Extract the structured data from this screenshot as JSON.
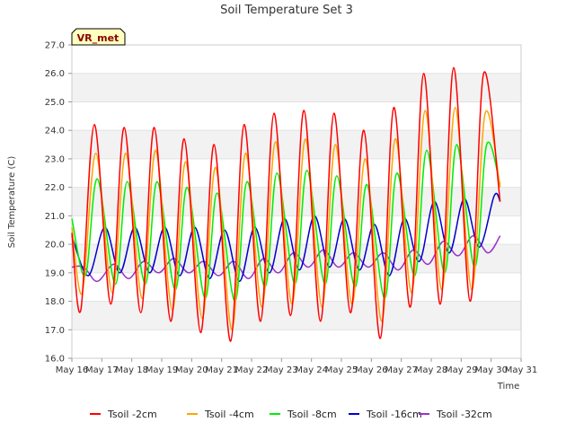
{
  "chart_data": {
    "type": "line",
    "title": "Soil Temperature Set 3",
    "xlabel": "Time",
    "ylabel": "Soil Temperature (C)",
    "ylim": [
      16.0,
      27.0
    ],
    "xlim": [
      "May 16",
      "May 31"
    ],
    "y_ticks": [
      "16.0",
      "17.0",
      "18.0",
      "19.0",
      "20.0",
      "21.0",
      "22.0",
      "23.0",
      "24.0",
      "25.0",
      "26.0",
      "27.0"
    ],
    "x_ticks": [
      "May 16",
      "May 17",
      "May 18",
      "May 19",
      "May 20",
      "May 21",
      "May 22",
      "May 23",
      "May 24",
      "May 25",
      "May 26",
      "May 27",
      "May 28",
      "May 29",
      "May 30",
      "May 31"
    ],
    "grid": "horizontal bands",
    "legend_position": "bottom",
    "badge": "VR_met",
    "series": [
      {
        "name": "Tsoil -2cm",
        "color": "#ff0000",
        "points": [
          [
            0.0,
            20.4
          ],
          [
            0.3,
            17.7
          ],
          [
            0.75,
            24.2
          ],
          [
            1.3,
            17.9
          ],
          [
            1.75,
            24.1
          ],
          [
            2.3,
            17.6
          ],
          [
            2.75,
            24.1
          ],
          [
            3.3,
            17.3
          ],
          [
            3.75,
            23.7
          ],
          [
            4.3,
            16.9
          ],
          [
            4.75,
            23.5
          ],
          [
            5.3,
            16.6
          ],
          [
            5.75,
            24.2
          ],
          [
            6.3,
            17.3
          ],
          [
            6.75,
            24.6
          ],
          [
            7.3,
            17.5
          ],
          [
            7.75,
            24.7
          ],
          [
            8.3,
            17.3
          ],
          [
            8.75,
            24.6
          ],
          [
            9.3,
            17.6
          ],
          [
            9.75,
            24.0
          ],
          [
            10.3,
            16.7
          ],
          [
            10.75,
            24.8
          ],
          [
            11.3,
            17.8
          ],
          [
            11.75,
            26.0
          ],
          [
            12.3,
            17.9
          ],
          [
            12.75,
            26.2
          ],
          [
            13.3,
            18.0
          ],
          [
            13.75,
            26.0
          ],
          [
            14.3,
            21.5
          ]
        ]
      },
      {
        "name": "Tsoil -4cm",
        "color": "#ffa500",
        "points": [
          [
            0.0,
            20.6
          ],
          [
            0.35,
            18.3
          ],
          [
            0.8,
            23.2
          ],
          [
            1.35,
            18.3
          ],
          [
            1.8,
            23.2
          ],
          [
            2.35,
            18.1
          ],
          [
            2.8,
            23.3
          ],
          [
            3.35,
            17.7
          ],
          [
            3.8,
            22.9
          ],
          [
            4.35,
            17.4
          ],
          [
            4.8,
            22.7
          ],
          [
            5.35,
            17.0
          ],
          [
            5.8,
            23.2
          ],
          [
            6.35,
            17.8
          ],
          [
            6.8,
            23.6
          ],
          [
            7.35,
            17.9
          ],
          [
            7.8,
            23.7
          ],
          [
            8.35,
            17.8
          ],
          [
            8.8,
            23.5
          ],
          [
            9.35,
            17.9
          ],
          [
            9.8,
            23.0
          ],
          [
            10.35,
            17.3
          ],
          [
            10.8,
            23.7
          ],
          [
            11.35,
            18.3
          ],
          [
            11.8,
            24.7
          ],
          [
            12.35,
            18.4
          ],
          [
            12.8,
            24.8
          ],
          [
            13.35,
            18.4
          ],
          [
            13.8,
            24.6
          ],
          [
            14.3,
            22.0
          ]
        ]
      },
      {
        "name": "Tsoil -8cm",
        "color": "#00ee00",
        "points": [
          [
            0.0,
            20.9
          ],
          [
            0.45,
            18.9
          ],
          [
            0.85,
            22.3
          ],
          [
            1.45,
            18.6
          ],
          [
            1.85,
            22.2
          ],
          [
            2.45,
            18.6
          ],
          [
            2.85,
            22.2
          ],
          [
            3.45,
            18.4
          ],
          [
            3.85,
            22.0
          ],
          [
            4.45,
            18.1
          ],
          [
            4.85,
            21.8
          ],
          [
            5.45,
            18.0
          ],
          [
            5.85,
            22.2
          ],
          [
            6.45,
            18.5
          ],
          [
            6.85,
            22.5
          ],
          [
            7.45,
            18.6
          ],
          [
            7.85,
            22.6
          ],
          [
            8.45,
            18.6
          ],
          [
            8.85,
            22.4
          ],
          [
            9.45,
            18.5
          ],
          [
            9.85,
            22.1
          ],
          [
            10.45,
            18.1
          ],
          [
            10.85,
            22.5
          ],
          [
            11.45,
            18.9
          ],
          [
            11.85,
            23.3
          ],
          [
            12.45,
            19.0
          ],
          [
            12.85,
            23.5
          ],
          [
            13.45,
            19.2
          ],
          [
            13.85,
            23.5
          ],
          [
            14.3,
            22.1
          ]
        ]
      },
      {
        "name": "Tsoil -16cm",
        "color": "#0000cc",
        "points": [
          [
            0.0,
            20.3
          ],
          [
            0.55,
            18.9
          ],
          [
            1.1,
            20.6
          ],
          [
            1.6,
            19.0
          ],
          [
            2.1,
            20.6
          ],
          [
            2.6,
            19.0
          ],
          [
            3.1,
            20.6
          ],
          [
            3.6,
            18.9
          ],
          [
            4.1,
            20.6
          ],
          [
            4.6,
            18.8
          ],
          [
            5.1,
            20.5
          ],
          [
            5.6,
            18.7
          ],
          [
            6.1,
            20.6
          ],
          [
            6.6,
            19.0
          ],
          [
            7.1,
            20.9
          ],
          [
            7.6,
            19.1
          ],
          [
            8.1,
            21.0
          ],
          [
            8.6,
            19.2
          ],
          [
            9.1,
            20.9
          ],
          [
            9.6,
            19.1
          ],
          [
            10.1,
            20.7
          ],
          [
            10.6,
            18.9
          ],
          [
            11.1,
            20.9
          ],
          [
            11.6,
            19.4
          ],
          [
            12.1,
            21.5
          ],
          [
            12.6,
            19.7
          ],
          [
            13.1,
            21.6
          ],
          [
            13.6,
            19.9
          ],
          [
            14.1,
            21.7
          ],
          [
            14.3,
            21.5
          ]
        ]
      },
      {
        "name": "Tsoil -32cm",
        "color": "#9932cc",
        "points": [
          [
            0.0,
            19.2
          ],
          [
            0.4,
            19.2
          ],
          [
            0.85,
            18.7
          ],
          [
            1.4,
            19.3
          ],
          [
            1.9,
            18.8
          ],
          [
            2.4,
            19.4
          ],
          [
            2.9,
            19.0
          ],
          [
            3.4,
            19.5
          ],
          [
            3.9,
            19.0
          ],
          [
            4.4,
            19.4
          ],
          [
            4.9,
            18.9
          ],
          [
            5.4,
            19.4
          ],
          [
            5.9,
            18.8
          ],
          [
            6.4,
            19.5
          ],
          [
            6.9,
            19.0
          ],
          [
            7.4,
            19.7
          ],
          [
            7.9,
            19.2
          ],
          [
            8.4,
            19.8
          ],
          [
            8.9,
            19.2
          ],
          [
            9.4,
            19.7
          ],
          [
            9.9,
            19.2
          ],
          [
            10.4,
            19.7
          ],
          [
            10.9,
            19.1
          ],
          [
            11.4,
            19.8
          ],
          [
            11.9,
            19.3
          ],
          [
            12.4,
            20.1
          ],
          [
            12.9,
            19.6
          ],
          [
            13.4,
            20.3
          ],
          [
            13.9,
            19.7
          ],
          [
            14.3,
            20.3
          ]
        ]
      }
    ]
  }
}
